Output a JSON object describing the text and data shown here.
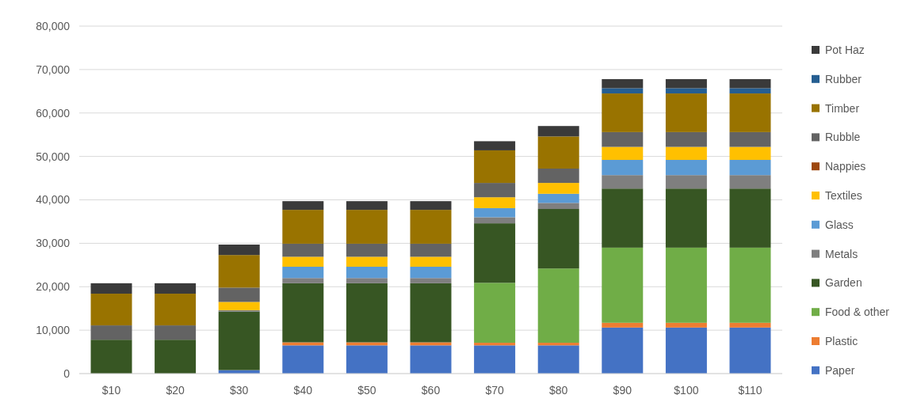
{
  "chart_data": {
    "type": "bar",
    "stacked": true,
    "categories": [
      "$10",
      "$20",
      "$30",
      "$40",
      "$50",
      "$60",
      "$70",
      "$80",
      "$90",
      "$100",
      "$110"
    ],
    "series": [
      {
        "name": "Paper",
        "color": "#4472c4",
        "values": [
          0,
          0,
          800,
          6500,
          6500,
          6500,
          6500,
          6500,
          10600,
          10600,
          10600
        ]
      },
      {
        "name": "Plastic",
        "color": "#ed7d31",
        "values": [
          0,
          0,
          0,
          700,
          700,
          700,
          600,
          600,
          1100,
          1100,
          1100
        ]
      },
      {
        "name": "Food & other",
        "color": "#70ad47",
        "values": [
          0,
          0,
          0,
          0,
          0,
          0,
          13800,
          17100,
          17300,
          17300,
          17300
        ]
      },
      {
        "name": "Garden",
        "color": "#375623",
        "values": [
          7800,
          7800,
          13500,
          13600,
          13600,
          13600,
          13700,
          13700,
          13600,
          13600,
          13600
        ]
      },
      {
        "name": "Metals",
        "color": "#7f7f7f",
        "values": [
          0,
          0,
          300,
          1200,
          1200,
          1200,
          1400,
          1400,
          3100,
          3100,
          3100
        ]
      },
      {
        "name": "Glass",
        "color": "#5b9bd5",
        "values": [
          0,
          0,
          0,
          2600,
          2600,
          2600,
          2100,
          2100,
          3500,
          3500,
          3500
        ]
      },
      {
        "name": "Textiles",
        "color": "#ffc000",
        "values": [
          0,
          0,
          1900,
          2300,
          2300,
          2300,
          2500,
          2500,
          3000,
          3000,
          3000
        ]
      },
      {
        "name": "Nappies",
        "color": "#9e480e",
        "values": [
          0,
          0,
          0,
          0,
          0,
          0,
          0,
          0,
          0,
          0,
          0
        ]
      },
      {
        "name": "Rubble",
        "color": "#636363",
        "values": [
          3300,
          3300,
          3300,
          3000,
          3000,
          3000,
          3300,
          3300,
          3400,
          3400,
          3400
        ]
      },
      {
        "name": "Timber",
        "color": "#997300",
        "values": [
          7300,
          7300,
          7500,
          7800,
          7800,
          7800,
          7500,
          7400,
          8900,
          8900,
          8900
        ]
      },
      {
        "name": "Rubber",
        "color": "#255e91",
        "values": [
          0,
          0,
          0,
          0,
          0,
          0,
          0,
          0,
          1200,
          1200,
          1200
        ]
      },
      {
        "name": "Pot Haz",
        "color": "#3a3a3a",
        "values": [
          2400,
          2400,
          2400,
          2000,
          2000,
          2000,
          2100,
          2400,
          2100,
          2100,
          2100
        ]
      }
    ],
    "ylim": [
      0,
      80000
    ],
    "yticks": [
      {
        "value": 0,
        "label": "0"
      },
      {
        "value": 10000,
        "label": "10,000"
      },
      {
        "value": 20000,
        "label": "20,000"
      },
      {
        "value": 30000,
        "label": "30,000"
      },
      {
        "value": 40000,
        "label": "40,000"
      },
      {
        "value": 50000,
        "label": "50,000"
      },
      {
        "value": 60000,
        "label": "60,000"
      },
      {
        "value": 70000,
        "label": "70,000"
      },
      {
        "value": 80000,
        "label": "80,000"
      }
    ],
    "grid": "y",
    "legend": "right"
  }
}
